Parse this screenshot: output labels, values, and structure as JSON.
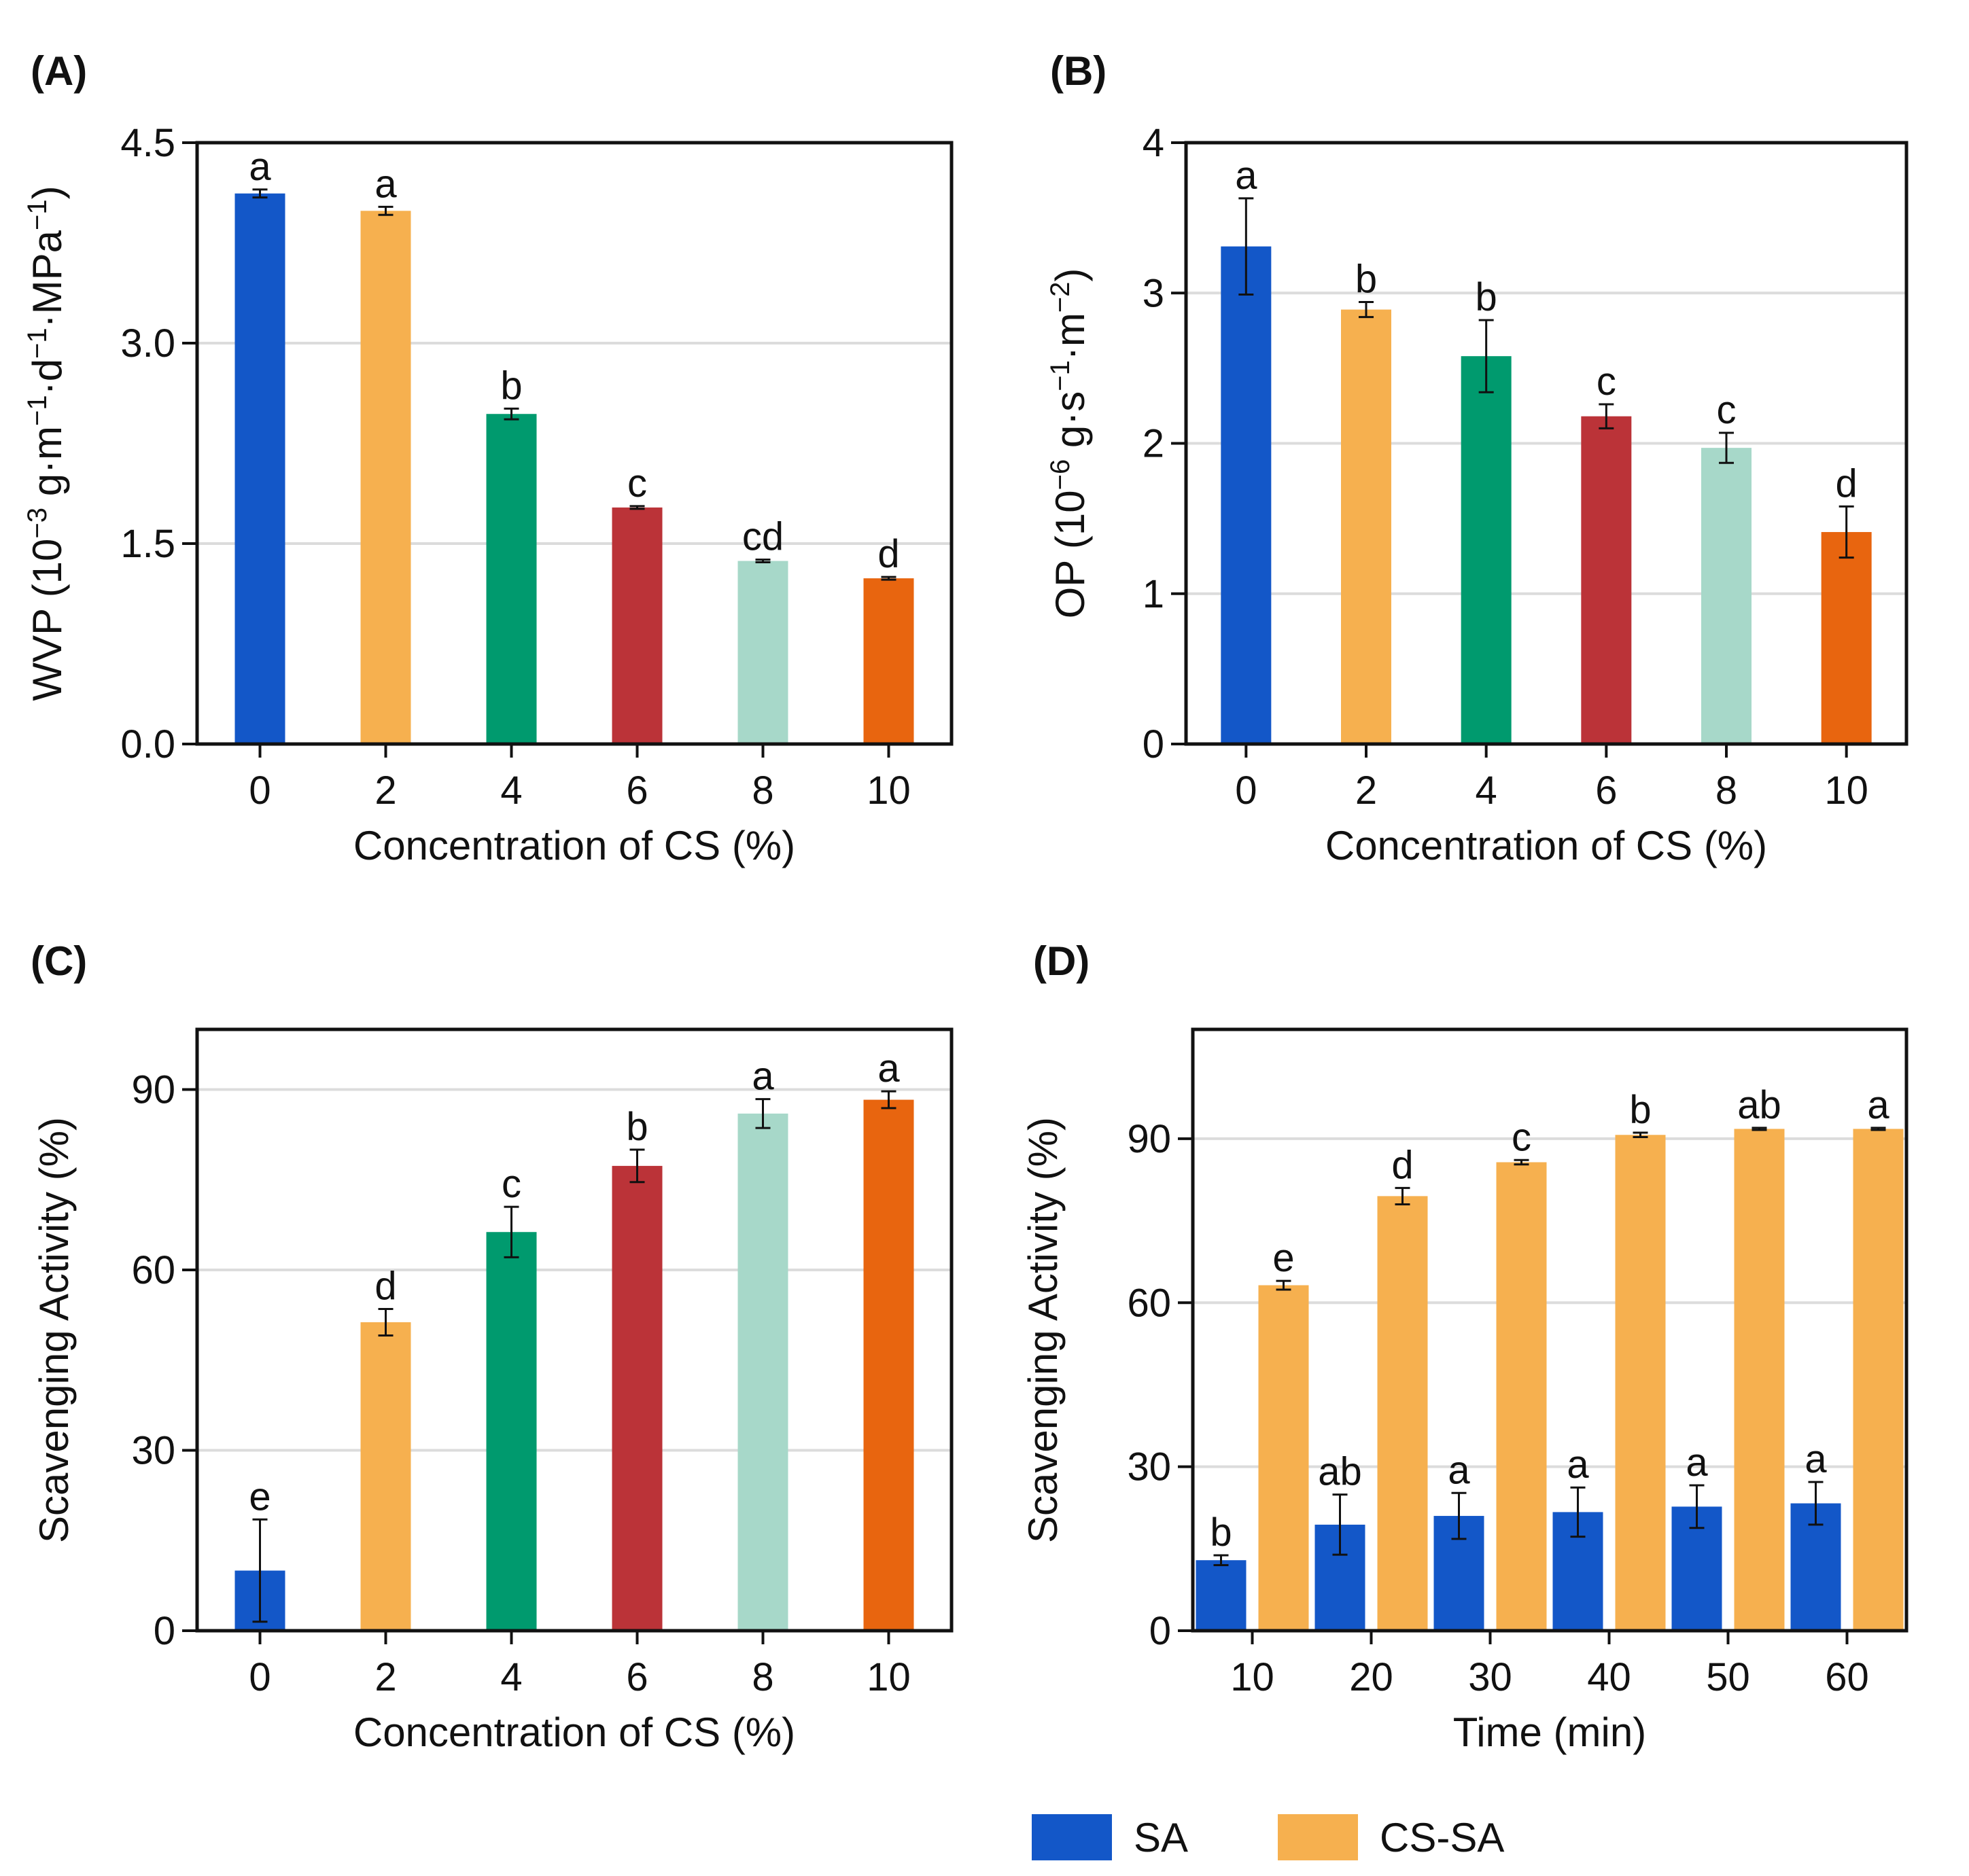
{
  "chart_data": [
    {
      "id": "A",
      "panel_label": "(A)",
      "type": "bar",
      "xlabel": "Concentration of CS (%)",
      "ylabel_parts": [
        "WVP (10",
        "−3",
        " g·m",
        "−1",
        "·d",
        "−1",
        "·MPa",
        "−1",
        ")"
      ],
      "ylim": [
        0,
        4.5
      ],
      "yticks": [
        0,
        1.5,
        3.0,
        4.5
      ],
      "ytick_labels": [
        "0.0",
        "1.5",
        "3.0",
        "4.5"
      ],
      "grid": true,
      "categories": [
        "0",
        "2",
        "4",
        "6",
        "8",
        "10"
      ],
      "values": [
        4.12,
        3.99,
        2.47,
        1.77,
        1.37,
        1.24
      ],
      "errors": [
        0.03,
        0.03,
        0.04,
        0.01,
        0.01,
        0.01
      ],
      "labels": [
        "a",
        "a",
        "b",
        "c",
        "cd",
        "d"
      ],
      "colors": [
        "#1357c8",
        "#f6b04f",
        "#009a6e",
        "#bb3338",
        "#a7d8c9",
        "#e8650f"
      ]
    },
    {
      "id": "B",
      "panel_label": "(B)",
      "type": "bar",
      "xlabel": "Concentration of CS (%)",
      "ylabel_parts": [
        "OP (10",
        "−6",
        " g·s",
        "−1",
        "·m",
        "−2",
        ")"
      ],
      "ylim": [
        0,
        4
      ],
      "yticks": [
        0,
        1,
        2,
        3,
        4
      ],
      "ytick_labels": [
        "0",
        "1",
        "2",
        "3",
        "4"
      ],
      "grid": true,
      "categories": [
        "0",
        "2",
        "4",
        "6",
        "8",
        "10"
      ],
      "values": [
        3.31,
        2.89,
        2.58,
        2.18,
        1.97,
        1.41
      ],
      "errors": [
        0.32,
        0.05,
        0.24,
        0.08,
        0.1,
        0.17
      ],
      "labels": [
        "a",
        "b",
        "b",
        "c",
        "c",
        "d"
      ],
      "colors": [
        "#1357c8",
        "#f6b04f",
        "#009a6e",
        "#bb3338",
        "#a7d8c9",
        "#e8650f"
      ]
    },
    {
      "id": "C",
      "panel_label": "(C)",
      "type": "bar",
      "xlabel": "Concentration of CS (%)",
      "ylabel_parts": [
        "Scavenging Activity (%)"
      ],
      "ylim": [
        0,
        100
      ],
      "yticks": [
        0,
        30,
        60,
        90
      ],
      "ytick_labels": [
        "0",
        "30",
        "60",
        "90"
      ],
      "grid": true,
      "categories": [
        "0",
        "2",
        "4",
        "6",
        "8",
        "10"
      ],
      "values": [
        10.0,
        51.3,
        66.3,
        77.3,
        86.0,
        88.3
      ],
      "errors": [
        8.5,
        2.2,
        4.2,
        2.7,
        2.4,
        1.4
      ],
      "labels": [
        "e",
        "d",
        "c",
        "b",
        "a",
        "a"
      ],
      "colors": [
        "#1357c8",
        "#f6b04f",
        "#009a6e",
        "#bb3338",
        "#a7d8c9",
        "#e8650f"
      ]
    },
    {
      "id": "D",
      "panel_label": "(D)",
      "type": "bar",
      "xlabel": "Time (min)",
      "ylabel_parts": [
        "Scavenging Activity (%)"
      ],
      "ylim": [
        0,
        110
      ],
      "yticks": [
        0,
        30,
        60,
        90
      ],
      "ytick_labels": [
        "0",
        "30",
        "60",
        "90"
      ],
      "grid": true,
      "categories": [
        "10",
        "20",
        "30",
        "40",
        "50",
        "60"
      ],
      "series": [
        {
          "name": "SA",
          "color": "#1357c8",
          "values": [
            12.9,
            19.4,
            21.0,
            21.7,
            22.7,
            23.3
          ],
          "errors": [
            0.9,
            5.5,
            4.2,
            4.5,
            3.9,
            3.9
          ],
          "labels": [
            "b",
            "ab",
            "a",
            "a",
            "a",
            "a"
          ]
        },
        {
          "name": "CS-SA",
          "color": "#f6b04f",
          "values": [
            63.2,
            79.5,
            85.7,
            90.7,
            91.8,
            91.8
          ],
          "errors": [
            0.8,
            1.5,
            0.4,
            0.4,
            0.2,
            0.2
          ],
          "labels": [
            "e",
            "d",
            "c",
            "b",
            "ab",
            "a"
          ]
        }
      ]
    }
  ],
  "legend": {
    "position": "bottom-right",
    "items": [
      {
        "name": "SA",
        "color": "#1357c8"
      },
      {
        "name": "CS-SA",
        "color": "#f6b04f"
      }
    ]
  }
}
